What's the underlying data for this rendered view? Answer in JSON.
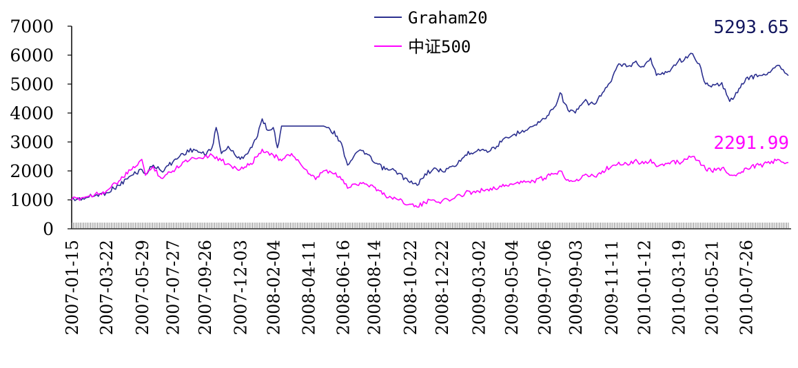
{
  "chart_data": {
    "type": "line",
    "title": "",
    "xlabel": "",
    "ylabel": "",
    "ylim": [
      0,
      7000
    ],
    "yticks": [
      0,
      1000,
      2000,
      3000,
      4000,
      5000,
      6000,
      7000
    ],
    "x_tick_labels": [
      "2007-01-15",
      "2007-03-22",
      "2007-05-29",
      "2007-07-27",
      "2007-09-26",
      "2007-12-03",
      "2008-02-04",
      "2008-04-11",
      "2008-06-16",
      "2008-08-14",
      "2008-10-22",
      "2008-12-22",
      "2009-03-02",
      "2009-05-04",
      "2009-07-06",
      "2009-09-03",
      "2009-11-11",
      "2010-01-12",
      "2010-03-19",
      "2010-05-21",
      "2010-07-26"
    ],
    "x_end": "2010-10-15",
    "legend": {
      "position": "top-center"
    },
    "grid": false,
    "series": [
      {
        "name": "Graham20",
        "color": "#2B2F8F",
        "end_label": "5293.65",
        "points": [
          [
            "2007-01-15",
            1000
          ],
          [
            "2007-02-05",
            1050
          ],
          [
            "2007-03-01",
            1150
          ],
          [
            "2007-03-22",
            1250
          ],
          [
            "2007-04-15",
            1500
          ],
          [
            "2007-05-10",
            1850
          ],
          [
            "2007-05-29",
            2050
          ],
          [
            "2007-06-05",
            1900
          ],
          [
            "2007-06-20",
            2200
          ],
          [
            "2007-07-05",
            2000
          ],
          [
            "2007-07-27",
            2300
          ],
          [
            "2007-08-15",
            2600
          ],
          [
            "2007-09-05",
            2750
          ],
          [
            "2007-09-26",
            2550
          ],
          [
            "2007-10-10",
            2800
          ],
          [
            "2007-10-18",
            3500
          ],
          [
            "2007-10-28",
            2600
          ],
          [
            "2007-11-10",
            2850
          ],
          [
            "2007-11-25",
            2500
          ],
          [
            "2007-12-03",
            2400
          ],
          [
            "2007-12-20",
            2700
          ],
          [
            "2008-01-05",
            3200
          ],
          [
            "2008-01-14",
            3800
          ],
          [
            "2008-01-25",
            3400
          ],
          [
            "2008-02-04",
            3500
          ],
          [
            "2008-02-12",
            2800
          ],
          [
            "2008-02-20",
            3550
          ],
          [
            "2008-05-10",
            3550
          ],
          [
            "2008-05-20",
            3500
          ],
          [
            "2008-06-05",
            3200
          ],
          [
            "2008-06-16",
            2800
          ],
          [
            "2008-06-25",
            2200
          ],
          [
            "2008-07-10",
            2600
          ],
          [
            "2008-07-25",
            2700
          ],
          [
            "2008-08-14",
            2300
          ],
          [
            "2008-09-05",
            2050
          ],
          [
            "2008-09-25",
            2000
          ],
          [
            "2008-10-22",
            1600
          ],
          [
            "2008-11-05",
            1500
          ],
          [
            "2008-11-20",
            1900
          ],
          [
            "2008-12-05",
            2050
          ],
          [
            "2008-12-22",
            2000
          ],
          [
            "2009-01-15",
            2150
          ],
          [
            "2009-02-05",
            2550
          ],
          [
            "2009-03-02",
            2750
          ],
          [
            "2009-03-25",
            2700
          ],
          [
            "2009-04-15",
            3000
          ],
          [
            "2009-05-04",
            3200
          ],
          [
            "2009-05-25",
            3400
          ],
          [
            "2009-06-15",
            3550
          ],
          [
            "2009-07-06",
            3800
          ],
          [
            "2009-07-25",
            4200
          ],
          [
            "2009-08-05",
            4700
          ],
          [
            "2009-08-20",
            4100
          ],
          [
            "2009-09-03",
            4000
          ],
          [
            "2009-09-20",
            4400
          ],
          [
            "2009-10-10",
            4300
          ],
          [
            "2009-10-25",
            4700
          ],
          [
            "2009-11-11",
            5100
          ],
          [
            "2009-11-25",
            5700
          ],
          [
            "2009-12-10",
            5600
          ],
          [
            "2009-12-25",
            5750
          ],
          [
            "2010-01-12",
            5600
          ],
          [
            "2010-01-25",
            5900
          ],
          [
            "2010-02-05",
            5300
          ],
          [
            "2010-02-25",
            5400
          ],
          [
            "2010-03-19",
            5800
          ],
          [
            "2010-04-05",
            5900
          ],
          [
            "2010-04-15",
            6050
          ],
          [
            "2010-04-28",
            5700
          ],
          [
            "2010-05-10",
            5000
          ],
          [
            "2010-05-21",
            4900
          ],
          [
            "2010-06-10",
            5050
          ],
          [
            "2010-06-25",
            4400
          ],
          [
            "2010-07-10",
            4700
          ],
          [
            "2010-07-26",
            5200
          ],
          [
            "2010-08-20",
            5300
          ],
          [
            "2010-09-10",
            5400
          ],
          [
            "2010-09-25",
            5650
          ],
          [
            "2010-10-05",
            5500
          ],
          [
            "2010-10-15",
            5293.65
          ]
        ]
      },
      {
        "name": "中证500",
        "color": "#FF00FF",
        "end_label": "2291.99",
        "points": [
          [
            "2007-01-15",
            1000
          ],
          [
            "2007-02-05",
            1080
          ],
          [
            "2007-03-01",
            1200
          ],
          [
            "2007-03-22",
            1300
          ],
          [
            "2007-04-15",
            1650
          ],
          [
            "2007-05-10",
            2050
          ],
          [
            "2007-05-29",
            2400
          ],
          [
            "2007-06-05",
            1850
          ],
          [
            "2007-06-20",
            2150
          ],
          [
            "2007-07-05",
            1750
          ],
          [
            "2007-07-27",
            2000
          ],
          [
            "2007-08-15",
            2300
          ],
          [
            "2007-09-05",
            2450
          ],
          [
            "2007-09-26",
            2500
          ],
          [
            "2007-10-10",
            2550
          ],
          [
            "2007-10-28",
            2350
          ],
          [
            "2007-11-10",
            2250
          ],
          [
            "2007-11-25",
            2100
          ],
          [
            "2007-12-03",
            2050
          ],
          [
            "2007-12-20",
            2200
          ],
          [
            "2008-01-05",
            2500
          ],
          [
            "2008-01-14",
            2750
          ],
          [
            "2008-01-25",
            2650
          ],
          [
            "2008-02-04",
            2550
          ],
          [
            "2008-02-20",
            2350
          ],
          [
            "2008-03-10",
            2600
          ],
          [
            "2008-03-25",
            2300
          ],
          [
            "2008-04-11",
            1900
          ],
          [
            "2008-04-25",
            1700
          ],
          [
            "2008-05-10",
            2000
          ],
          [
            "2008-05-25",
            1950
          ],
          [
            "2008-06-16",
            1700
          ],
          [
            "2008-06-25",
            1400
          ],
          [
            "2008-07-10",
            1550
          ],
          [
            "2008-07-25",
            1600
          ],
          [
            "2008-08-14",
            1450
          ],
          [
            "2008-09-05",
            1150
          ],
          [
            "2008-09-25",
            1050
          ],
          [
            "2008-10-22",
            850
          ],
          [
            "2008-11-05",
            750
          ],
          [
            "2008-11-20",
            900
          ],
          [
            "2008-12-05",
            1000
          ],
          [
            "2008-12-22",
            950
          ],
          [
            "2009-01-15",
            1050
          ],
          [
            "2009-02-05",
            1250
          ],
          [
            "2009-03-02",
            1300
          ],
          [
            "2009-03-25",
            1400
          ],
          [
            "2009-04-15",
            1450
          ],
          [
            "2009-05-04",
            1550
          ],
          [
            "2009-05-25",
            1600
          ],
          [
            "2009-06-15",
            1650
          ],
          [
            "2009-07-06",
            1750
          ],
          [
            "2009-07-25",
            1900
          ],
          [
            "2009-08-05",
            2000
          ],
          [
            "2009-08-20",
            1700
          ],
          [
            "2009-09-03",
            1650
          ],
          [
            "2009-09-20",
            1850
          ],
          [
            "2009-10-10",
            1800
          ],
          [
            "2009-10-25",
            2000
          ],
          [
            "2009-11-11",
            2150
          ],
          [
            "2009-11-25",
            2300
          ],
          [
            "2009-12-10",
            2250
          ],
          [
            "2009-12-25",
            2350
          ],
          [
            "2010-01-12",
            2250
          ],
          [
            "2010-01-25",
            2400
          ],
          [
            "2010-02-05",
            2150
          ],
          [
            "2010-02-25",
            2250
          ],
          [
            "2010-03-19",
            2300
          ],
          [
            "2010-04-05",
            2400
          ],
          [
            "2010-04-15",
            2500
          ],
          [
            "2010-04-28",
            2350
          ],
          [
            "2010-05-10",
            2050
          ],
          [
            "2010-05-21",
            2000
          ],
          [
            "2010-06-10",
            2100
          ],
          [
            "2010-06-25",
            1850
          ],
          [
            "2010-07-10",
            1900
          ],
          [
            "2010-07-26",
            2100
          ],
          [
            "2010-08-20",
            2200
          ],
          [
            "2010-09-10",
            2250
          ],
          [
            "2010-09-25",
            2400
          ],
          [
            "2010-10-05",
            2300
          ],
          [
            "2010-10-15",
            2291.99
          ]
        ]
      }
    ]
  }
}
